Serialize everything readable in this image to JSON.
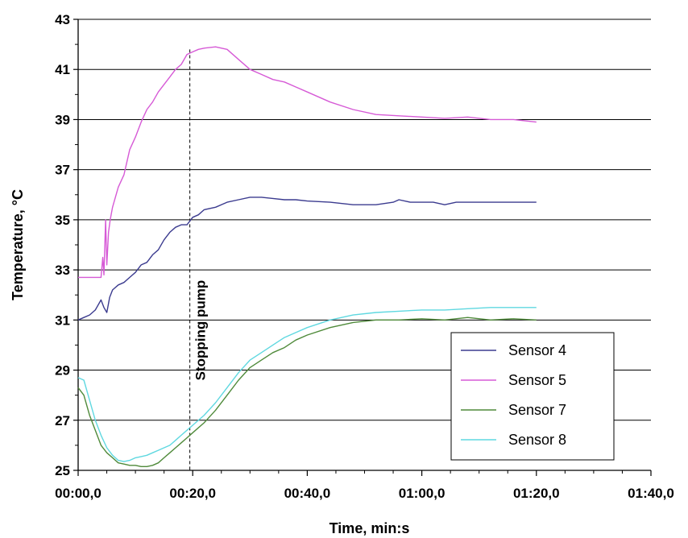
{
  "chart_data": {
    "type": "line",
    "xlabel": "Time, min:s",
    "ylabel": "Temperature, °C",
    "xlim": [
      0,
      100
    ],
    "ylim": [
      25,
      43
    ],
    "x_ticks": [
      0,
      20,
      40,
      60,
      80,
      100
    ],
    "x_tick_labels": [
      "00:00,0",
      "00:20,0",
      "00:40,0",
      "01:00,0",
      "01:20,0",
      "01:40,0"
    ],
    "y_ticks": [
      25,
      27,
      29,
      31,
      33,
      35,
      37,
      39,
      41,
      43
    ],
    "y_tick_labels": [
      "25",
      "27",
      "29",
      "31",
      "33",
      "35",
      "37",
      "39",
      "41",
      "43"
    ],
    "grid": "horizontal",
    "legend_position": "bottom-right",
    "annotation": {
      "text": "Stopping pump",
      "x": 19.5
    },
    "series": [
      {
        "name": "Sensor 4",
        "color": "#3b3b8f",
        "x": [
          0,
          1,
          2,
          3,
          4,
          4.5,
          5,
          5.5,
          6,
          7,
          8,
          9,
          10,
          11,
          12,
          13,
          14,
          15,
          16,
          17,
          18,
          19,
          20,
          21,
          22,
          24,
          26,
          28,
          30,
          32,
          34,
          36,
          38,
          40,
          44,
          48,
          52,
          55,
          56,
          58,
          62,
          64,
          66,
          70,
          74,
          78,
          80
        ],
        "y": [
          31.0,
          31.1,
          31.2,
          31.4,
          31.8,
          31.5,
          31.3,
          31.9,
          32.2,
          32.4,
          32.5,
          32.7,
          32.9,
          33.2,
          33.3,
          33.6,
          33.8,
          34.2,
          34.5,
          34.7,
          34.8,
          34.8,
          35.1,
          35.2,
          35.4,
          35.5,
          35.7,
          35.8,
          35.9,
          35.9,
          35.85,
          35.8,
          35.8,
          35.75,
          35.7,
          35.6,
          35.6,
          35.7,
          35.8,
          35.7,
          35.7,
          35.6,
          35.7,
          35.7,
          35.7,
          35.7,
          35.7
        ]
      },
      {
        "name": "Sensor 5",
        "color": "#d65ad6",
        "x": [
          0,
          2,
          4,
          4.3,
          4.5,
          4.8,
          5,
          5.3,
          5.6,
          6,
          7,
          8,
          9,
          10,
          11,
          12,
          13,
          14,
          15,
          16,
          17,
          18,
          19,
          20,
          21,
          22,
          24,
          26,
          28,
          30,
          32,
          34,
          36,
          38,
          40,
          44,
          48,
          52,
          56,
          60,
          64,
          68,
          72,
          76,
          80
        ],
        "y": [
          32.7,
          32.7,
          32.7,
          33.5,
          32.8,
          35.0,
          33.2,
          34.5,
          35.0,
          35.5,
          36.3,
          36.8,
          37.8,
          38.3,
          38.9,
          39.4,
          39.7,
          40.1,
          40.4,
          40.7,
          41.0,
          41.2,
          41.6,
          41.7,
          41.8,
          41.85,
          41.9,
          41.8,
          41.4,
          41.0,
          40.8,
          40.6,
          40.5,
          40.3,
          40.1,
          39.7,
          39.4,
          39.2,
          39.15,
          39.1,
          39.05,
          39.1,
          39.0,
          39.0,
          38.9
        ]
      },
      {
        "name": "Sensor 7",
        "color": "#4f8a3a",
        "x": [
          0,
          1,
          2,
          3,
          4,
          5,
          6,
          7,
          8,
          9,
          10,
          11,
          12,
          13,
          14,
          15,
          16,
          17,
          18,
          19,
          20,
          22,
          24,
          26,
          28,
          30,
          32,
          34,
          36,
          38,
          40,
          44,
          48,
          52,
          56,
          60,
          64,
          68,
          72,
          76,
          80
        ],
        "y": [
          28.3,
          28.0,
          27.2,
          26.6,
          26.0,
          25.7,
          25.5,
          25.3,
          25.25,
          25.2,
          25.2,
          25.15,
          25.15,
          25.2,
          25.3,
          25.5,
          25.7,
          25.9,
          26.1,
          26.3,
          26.5,
          26.9,
          27.4,
          28.0,
          28.6,
          29.1,
          29.4,
          29.7,
          29.9,
          30.2,
          30.4,
          30.7,
          30.9,
          31.0,
          31.0,
          31.05,
          31.0,
          31.1,
          31.0,
          31.05,
          31.0
        ]
      },
      {
        "name": "Sensor 8",
        "color": "#5fd8e0",
        "x": [
          0,
          1,
          2,
          3,
          4,
          5,
          6,
          7,
          8,
          9,
          10,
          11,
          12,
          13,
          14,
          15,
          16,
          17,
          18,
          19,
          20,
          22,
          24,
          26,
          28,
          30,
          32,
          34,
          36,
          38,
          40,
          44,
          48,
          52,
          56,
          60,
          64,
          68,
          72,
          76,
          80
        ],
        "y": [
          28.7,
          28.6,
          27.8,
          27.0,
          26.4,
          25.9,
          25.6,
          25.4,
          25.35,
          25.4,
          25.5,
          25.55,
          25.6,
          25.7,
          25.8,
          25.9,
          26.0,
          26.2,
          26.4,
          26.6,
          26.8,
          27.2,
          27.7,
          28.3,
          28.9,
          29.4,
          29.7,
          30.0,
          30.3,
          30.5,
          30.7,
          31.0,
          31.2,
          31.3,
          31.35,
          31.4,
          31.4,
          31.45,
          31.5,
          31.5,
          31.5
        ]
      }
    ]
  }
}
